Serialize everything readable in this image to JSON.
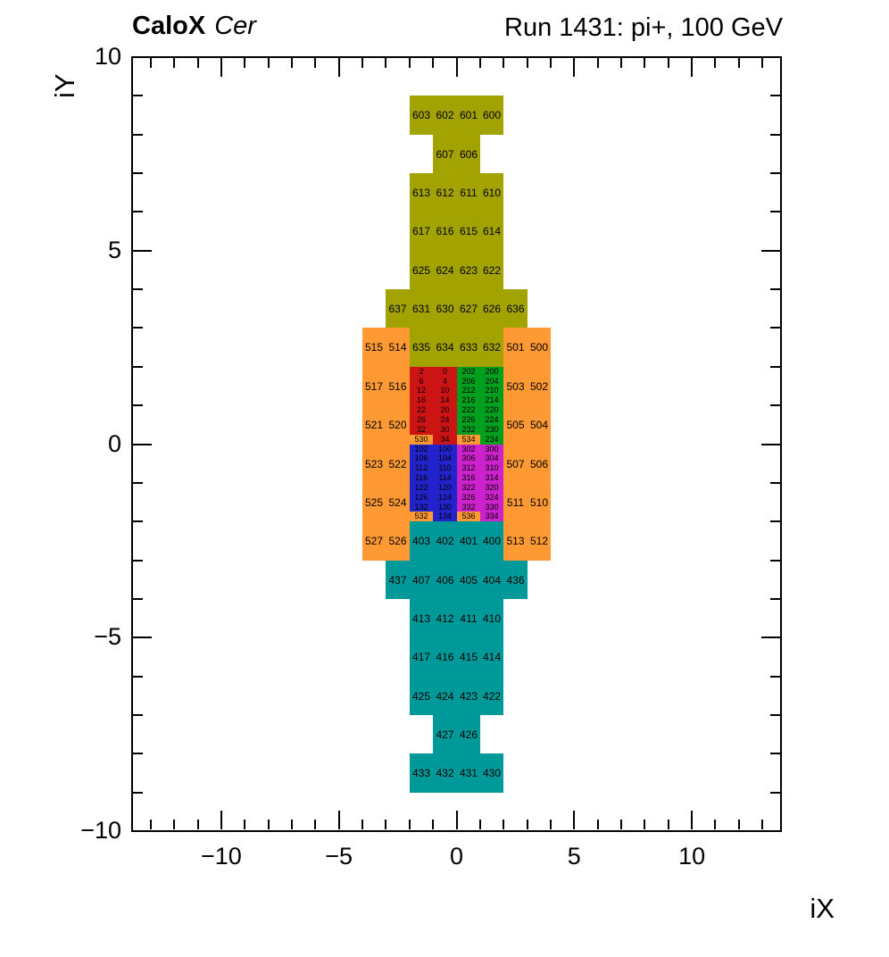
{
  "header": {
    "left_bold": "CaloX",
    "left_italic": "Cer",
    "right": "Run 1431: pi+, 100 GeV"
  },
  "axes": {
    "x_label": "iX",
    "y_label": "iY",
    "x_tick_labels": [
      "−10",
      "−5",
      "0",
      "5",
      "10"
    ],
    "x_tick_values": [
      -10,
      -5,
      0,
      5,
      10
    ],
    "y_tick_labels": [
      "10",
      "5",
      "0",
      "−5",
      "−10"
    ],
    "y_tick_values": [
      10,
      5,
      0,
      -5,
      -10
    ],
    "minor_tick_step": 1
  },
  "chart_data": {
    "type": "heatmap",
    "title_left": "CaloX Cer",
    "title_right": "Run 1431: pi+, 100 GeV",
    "xlabel": "iX",
    "ylabel": "iY",
    "xlim": [
      -13.75,
      13.75
    ],
    "ylim": [
      -10,
      10
    ],
    "grid": false,
    "legend": "none",
    "color_groups": {
      "olive": "#a2a200",
      "orange": "#ff9933",
      "red": "#cc1414",
      "green": "#00a01e",
      "blue": "#2323cc",
      "magenta": "#cc22cc",
      "teal": "#009999"
    },
    "cell_format": [
      "channel",
      "x_left",
      "y_bottom",
      "width",
      "height",
      "color_group"
    ],
    "cells": [
      [
        "603",
        -2,
        8,
        1,
        1,
        "olive"
      ],
      [
        "602",
        -1,
        8,
        1,
        1,
        "olive"
      ],
      [
        "601",
        0,
        8,
        1,
        1,
        "olive"
      ],
      [
        "600",
        1,
        8,
        1,
        1,
        "olive"
      ],
      [
        "607",
        -1,
        7,
        1,
        1,
        "olive"
      ],
      [
        "606",
        0,
        7,
        1,
        1,
        "olive"
      ],
      [
        "613",
        -2,
        6,
        1,
        1,
        "olive"
      ],
      [
        "612",
        -1,
        6,
        1,
        1,
        "olive"
      ],
      [
        "611",
        0,
        6,
        1,
        1,
        "olive"
      ],
      [
        "610",
        1,
        6,
        1,
        1,
        "olive"
      ],
      [
        "617",
        -2,
        5,
        1,
        1,
        "olive"
      ],
      [
        "616",
        -1,
        5,
        1,
        1,
        "olive"
      ],
      [
        "615",
        0,
        5,
        1,
        1,
        "olive"
      ],
      [
        "614",
        1,
        5,
        1,
        1,
        "olive"
      ],
      [
        "625",
        -2,
        4,
        1,
        1,
        "olive"
      ],
      [
        "624",
        -1,
        4,
        1,
        1,
        "olive"
      ],
      [
        "623",
        0,
        4,
        1,
        1,
        "olive"
      ],
      [
        "622",
        1,
        4,
        1,
        1,
        "olive"
      ],
      [
        "637",
        -3,
        3,
        1,
        1,
        "olive"
      ],
      [
        "631",
        -2,
        3,
        1,
        1,
        "olive"
      ],
      [
        "630",
        -1,
        3,
        1,
        1,
        "olive"
      ],
      [
        "627",
        0,
        3,
        1,
        1,
        "olive"
      ],
      [
        "626",
        1,
        3,
        1,
        1,
        "olive"
      ],
      [
        "636",
        2,
        3,
        1,
        1,
        "olive"
      ],
      [
        "635",
        -2,
        2,
        1,
        1,
        "olive"
      ],
      [
        "634",
        -1,
        2,
        1,
        1,
        "olive"
      ],
      [
        "633",
        0,
        2,
        1,
        1,
        "olive"
      ],
      [
        "632",
        1,
        2,
        1,
        1,
        "olive"
      ],
      [
        "515",
        -4,
        2,
        1,
        1,
        "orange"
      ],
      [
        "514",
        -3,
        2,
        1,
        1,
        "orange"
      ],
      [
        "517",
        -4,
        1,
        1,
        1,
        "orange"
      ],
      [
        "516",
        -3,
        1,
        1,
        1,
        "orange"
      ],
      [
        "521",
        -4,
        0,
        1,
        1,
        "orange"
      ],
      [
        "520",
        -3,
        0,
        1,
        1,
        "orange"
      ],
      [
        "523",
        -4,
        -1,
        1,
        1,
        "orange"
      ],
      [
        "522",
        -3,
        -1,
        1,
        1,
        "orange"
      ],
      [
        "525",
        -4,
        -2,
        1,
        1,
        "orange"
      ],
      [
        "524",
        -3,
        -2,
        1,
        1,
        "orange"
      ],
      [
        "527",
        -4,
        -3,
        1,
        1,
        "orange"
      ],
      [
        "526",
        -3,
        -3,
        1,
        1,
        "orange"
      ],
      [
        "501",
        2,
        2,
        1,
        1,
        "orange"
      ],
      [
        "500",
        3,
        2,
        1,
        1,
        "orange"
      ],
      [
        "503",
        2,
        1,
        1,
        1,
        "orange"
      ],
      [
        "502",
        3,
        1,
        1,
        1,
        "orange"
      ],
      [
        "505",
        2,
        0,
        1,
        1,
        "orange"
      ],
      [
        "504",
        3,
        0,
        1,
        1,
        "orange"
      ],
      [
        "507",
        2,
        -1,
        1,
        1,
        "orange"
      ],
      [
        "506",
        3,
        -1,
        1,
        1,
        "orange"
      ],
      [
        "511",
        2,
        -2,
        1,
        1,
        "orange"
      ],
      [
        "510",
        3,
        -2,
        1,
        1,
        "orange"
      ],
      [
        "513",
        2,
        -3,
        1,
        1,
        "orange"
      ],
      [
        "512",
        3,
        -3,
        1,
        1,
        "orange"
      ],
      [
        "2",
        -2,
        1.75,
        1,
        0.25,
        "red"
      ],
      [
        "0",
        -1,
        1.75,
        1,
        0.25,
        "red"
      ],
      [
        "6",
        -2,
        1.5,
        1,
        0.25,
        "red"
      ],
      [
        "4",
        -1,
        1.5,
        1,
        0.25,
        "red"
      ],
      [
        "12",
        -2,
        1.25,
        1,
        0.25,
        "red"
      ],
      [
        "10",
        -1,
        1.25,
        1,
        0.25,
        "red"
      ],
      [
        "16",
        -2,
        1,
        1,
        0.25,
        "red"
      ],
      [
        "14",
        -1,
        1,
        1,
        0.25,
        "red"
      ],
      [
        "22",
        -2,
        0.75,
        1,
        0.25,
        "red"
      ],
      [
        "20",
        -1,
        0.75,
        1,
        0.25,
        "red"
      ],
      [
        "26",
        -2,
        0.5,
        1,
        0.25,
        "red"
      ],
      [
        "24",
        -1,
        0.5,
        1,
        0.25,
        "red"
      ],
      [
        "32",
        -2,
        0.25,
        1,
        0.25,
        "red"
      ],
      [
        "30",
        -1,
        0.25,
        1,
        0.25,
        "red"
      ],
      [
        "530",
        -2,
        0,
        1,
        0.25,
        "orange"
      ],
      [
        "34",
        -1,
        0,
        1,
        0.25,
        "red"
      ],
      [
        "202",
        0,
        1.75,
        1,
        0.25,
        "green"
      ],
      [
        "200",
        1,
        1.75,
        1,
        0.25,
        "green"
      ],
      [
        "206",
        0,
        1.5,
        1,
        0.25,
        "green"
      ],
      [
        "204",
        1,
        1.5,
        1,
        0.25,
        "green"
      ],
      [
        "212",
        0,
        1.25,
        1,
        0.25,
        "green"
      ],
      [
        "210",
        1,
        1.25,
        1,
        0.25,
        "green"
      ],
      [
        "216",
        0,
        1,
        1,
        0.25,
        "green"
      ],
      [
        "214",
        1,
        1,
        1,
        0.25,
        "green"
      ],
      [
        "222",
        0,
        0.75,
        1,
        0.25,
        "green"
      ],
      [
        "220",
        1,
        0.75,
        1,
        0.25,
        "green"
      ],
      [
        "226",
        0,
        0.5,
        1,
        0.25,
        "green"
      ],
      [
        "224",
        1,
        0.5,
        1,
        0.25,
        "green"
      ],
      [
        "232",
        0,
        0.25,
        1,
        0.25,
        "green"
      ],
      [
        "230",
        1,
        0.25,
        1,
        0.25,
        "green"
      ],
      [
        "534",
        0,
        0,
        1,
        0.25,
        "orange"
      ],
      [
        "234",
        1,
        0,
        1,
        0.25,
        "green"
      ],
      [
        "102",
        -2,
        -0.25,
        1,
        0.25,
        "blue"
      ],
      [
        "100",
        -1,
        -0.25,
        1,
        0.25,
        "blue"
      ],
      [
        "106",
        -2,
        -0.5,
        1,
        0.25,
        "blue"
      ],
      [
        "104",
        -1,
        -0.5,
        1,
        0.25,
        "blue"
      ],
      [
        "112",
        -2,
        -0.75,
        1,
        0.25,
        "blue"
      ],
      [
        "110",
        -1,
        -0.75,
        1,
        0.25,
        "blue"
      ],
      [
        "116",
        -2,
        -1,
        1,
        0.25,
        "blue"
      ],
      [
        "114",
        -1,
        -1,
        1,
        0.25,
        "blue"
      ],
      [
        "122",
        -2,
        -1.25,
        1,
        0.25,
        "blue"
      ],
      [
        "120",
        -1,
        -1.25,
        1,
        0.25,
        "blue"
      ],
      [
        "126",
        -2,
        -1.5,
        1,
        0.25,
        "blue"
      ],
      [
        "124",
        -1,
        -1.5,
        1,
        0.25,
        "blue"
      ],
      [
        "132",
        -2,
        -1.75,
        1,
        0.25,
        "blue"
      ],
      [
        "130",
        -1,
        -1.75,
        1,
        0.25,
        "blue"
      ],
      [
        "532",
        -2,
        -2,
        1,
        0.25,
        "orange"
      ],
      [
        "134",
        -1,
        -2,
        1,
        0.25,
        "blue"
      ],
      [
        "302",
        0,
        -0.25,
        1,
        0.25,
        "magenta"
      ],
      [
        "300",
        1,
        -0.25,
        1,
        0.25,
        "magenta"
      ],
      [
        "306",
        0,
        -0.5,
        1,
        0.25,
        "magenta"
      ],
      [
        "304",
        1,
        -0.5,
        1,
        0.25,
        "magenta"
      ],
      [
        "312",
        0,
        -0.75,
        1,
        0.25,
        "magenta"
      ],
      [
        "310",
        1,
        -0.75,
        1,
        0.25,
        "magenta"
      ],
      [
        "316",
        0,
        -1,
        1,
        0.25,
        "magenta"
      ],
      [
        "314",
        1,
        -1,
        1,
        0.25,
        "magenta"
      ],
      [
        "322",
        0,
        -1.25,
        1,
        0.25,
        "magenta"
      ],
      [
        "320",
        1,
        -1.25,
        1,
        0.25,
        "magenta"
      ],
      [
        "326",
        0,
        -1.5,
        1,
        0.25,
        "magenta"
      ],
      [
        "324",
        1,
        -1.5,
        1,
        0.25,
        "magenta"
      ],
      [
        "332",
        0,
        -1.75,
        1,
        0.25,
        "magenta"
      ],
      [
        "330",
        1,
        -1.75,
        1,
        0.25,
        "magenta"
      ],
      [
        "536",
        0,
        -2,
        1,
        0.25,
        "orange"
      ],
      [
        "334",
        1,
        -2,
        1,
        0.25,
        "magenta"
      ],
      [
        "403",
        -2,
        -3,
        1,
        1,
        "teal"
      ],
      [
        "402",
        -1,
        -3,
        1,
        1,
        "teal"
      ],
      [
        "401",
        0,
        -3,
        1,
        1,
        "teal"
      ],
      [
        "400",
        1,
        -3,
        1,
        1,
        "teal"
      ],
      [
        "437",
        -3,
        -4,
        1,
        1,
        "teal"
      ],
      [
        "407",
        -2,
        -4,
        1,
        1,
        "teal"
      ],
      [
        "406",
        -1,
        -4,
        1,
        1,
        "teal"
      ],
      [
        "405",
        0,
        -4,
        1,
        1,
        "teal"
      ],
      [
        "404",
        1,
        -4,
        1,
        1,
        "teal"
      ],
      [
        "436",
        2,
        -4,
        1,
        1,
        "teal"
      ],
      [
        "413",
        -2,
        -5,
        1,
        1,
        "teal"
      ],
      [
        "412",
        -1,
        -5,
        1,
        1,
        "teal"
      ],
      [
        "411",
        0,
        -5,
        1,
        1,
        "teal"
      ],
      [
        "410",
        1,
        -5,
        1,
        1,
        "teal"
      ],
      [
        "417",
        -2,
        -6,
        1,
        1,
        "teal"
      ],
      [
        "416",
        -1,
        -6,
        1,
        1,
        "teal"
      ],
      [
        "415",
        0,
        -6,
        1,
        1,
        "teal"
      ],
      [
        "414",
        1,
        -6,
        1,
        1,
        "teal"
      ],
      [
        "425",
        -2,
        -7,
        1,
        1,
        "teal"
      ],
      [
        "424",
        -1,
        -7,
        1,
        1,
        "teal"
      ],
      [
        "423",
        0,
        -7,
        1,
        1,
        "teal"
      ],
      [
        "422",
        1,
        -7,
        1,
        1,
        "teal"
      ],
      [
        "427",
        -1,
        -8,
        1,
        1,
        "teal"
      ],
      [
        "426",
        0,
        -8,
        1,
        1,
        "teal"
      ],
      [
        "433",
        -2,
        -9,
        1,
        1,
        "teal"
      ],
      [
        "432",
        -1,
        -9,
        1,
        1,
        "teal"
      ],
      [
        "431",
        0,
        -9,
        1,
        1,
        "teal"
      ],
      [
        "430",
        1,
        -9,
        1,
        1,
        "teal"
      ]
    ]
  }
}
